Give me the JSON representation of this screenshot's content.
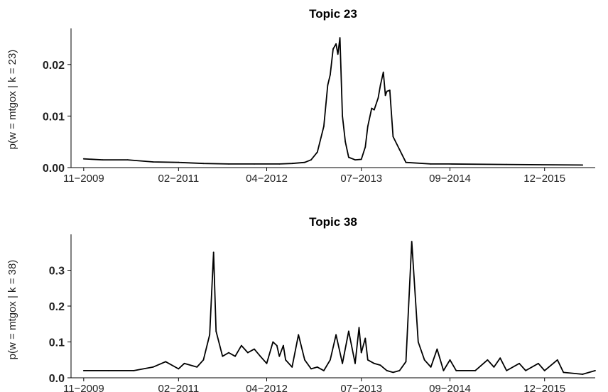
{
  "chart_data": [
    {
      "type": "line",
      "title": "Topic 23",
      "ylabel": "p(w = mtgox | k = 23)",
      "xlabel": "",
      "x_tick_labels": [
        "11−2009",
        "02−2011",
        "04−2012",
        "07−2013",
        "09−2014",
        "12−2015"
      ],
      "x_tick_dates": [
        "2009-11",
        "2011-02",
        "2012-04",
        "2013-07",
        "2014-09",
        "2015-12"
      ],
      "y_ticks": [
        0.0,
        0.01,
        0.02
      ],
      "y_tick_labels": [
        "0.00",
        "0.01",
        "0.02"
      ],
      "xlim": [
        "2009-09",
        "2016-08"
      ],
      "ylim": [
        0,
        0.027
      ],
      "grid": false,
      "series": [
        {
          "points": [
            [
              "2009-11",
              0.0017
            ],
            [
              "2010-02",
              0.0015
            ],
            [
              "2010-06",
              0.0015
            ],
            [
              "2010-10",
              0.0011
            ],
            [
              "2011-02",
              0.001
            ],
            [
              "2011-06",
              0.0008
            ],
            [
              "2011-10",
              0.0007
            ],
            [
              "2012-02",
              0.0007
            ],
            [
              "2012-06",
              0.0007
            ],
            [
              "2012-08",
              0.0008
            ],
            [
              "2012-10",
              0.001
            ],
            [
              "2012-11",
              0.0015
            ],
            [
              "2012-12",
              0.003
            ],
            [
              "2013-01",
              0.008
            ],
            [
              "2013-01-20",
              0.016
            ],
            [
              "2013-02",
              0.018
            ],
            [
              "2013-02-15",
              0.023
            ],
            [
              "2013-03",
              0.024
            ],
            [
              "2013-03-10",
              0.022
            ],
            [
              "2013-03-20",
              0.0252
            ],
            [
              "2013-04",
              0.01
            ],
            [
              "2013-04-15",
              0.005
            ],
            [
              "2013-05",
              0.002
            ],
            [
              "2013-06",
              0.0015
            ],
            [
              "2013-07",
              0.0016
            ],
            [
              "2013-07-20",
              0.004
            ],
            [
              "2013-08",
              0.008
            ],
            [
              "2013-08-20",
              0.0115
            ],
            [
              "2013-09",
              0.0112
            ],
            [
              "2013-09-20",
              0.0135
            ],
            [
              "2013-10",
              0.016
            ],
            [
              "2013-10-15",
              0.0185
            ],
            [
              "2013-10-25",
              0.014
            ],
            [
              "2013-11",
              0.0148
            ],
            [
              "2013-11-15",
              0.015
            ],
            [
              "2013-12",
              0.006
            ],
            [
              "2014-01",
              0.0035
            ],
            [
              "2014-02",
              0.001
            ],
            [
              "2014-06",
              0.0007
            ],
            [
              "2014-09",
              0.0007
            ],
            [
              "2015-06",
              0.0006
            ],
            [
              "2016-06",
              0.0005
            ]
          ]
        }
      ]
    },
    {
      "type": "line",
      "title": "Topic 38",
      "ylabel": "p(w = mtgox | k = 38)",
      "xlabel": "",
      "x_tick_labels": [
        "11−2009",
        "02−2011",
        "04−2012",
        "07−2013",
        "09−2014",
        "12−2015"
      ],
      "x_tick_dates": [
        "2009-11",
        "2011-02",
        "2012-04",
        "2013-07",
        "2014-09",
        "2015-12"
      ],
      "y_ticks": [
        0.0,
        0.1,
        0.2,
        0.3
      ],
      "y_tick_labels": [
        "0.0",
        "0.1",
        "0.2",
        "0.3"
      ],
      "xlim": [
        "2009-09",
        "2016-08"
      ],
      "ylim": [
        0,
        0.4
      ],
      "grid": false,
      "series": [
        {
          "points": [
            [
              "2009-11",
              0.02
            ],
            [
              "2010-03",
              0.02
            ],
            [
              "2010-07",
              0.02
            ],
            [
              "2010-10",
              0.03
            ],
            [
              "2010-12",
              0.045
            ],
            [
              "2011-02",
              0.025
            ],
            [
              "2011-03",
              0.04
            ],
            [
              "2011-05",
              0.03
            ],
            [
              "2011-06",
              0.05
            ],
            [
              "2011-07",
              0.12
            ],
            [
              "2011-07-20",
              0.35
            ],
            [
              "2011-08",
              0.13
            ],
            [
              "2011-09",
              0.06
            ],
            [
              "2011-10",
              0.07
            ],
            [
              "2011-11",
              0.06
            ],
            [
              "2011-12",
              0.09
            ],
            [
              "2012-01",
              0.07
            ],
            [
              "2012-02",
              0.08
            ],
            [
              "2012-03",
              0.06
            ],
            [
              "2012-04",
              0.04
            ],
            [
              "2012-05",
              0.1
            ],
            [
              "2012-05-20",
              0.09
            ],
            [
              "2012-06",
              0.06
            ],
            [
              "2012-06-20",
              0.09
            ],
            [
              "2012-07",
              0.05
            ],
            [
              "2012-08",
              0.03
            ],
            [
              "2012-09",
              0.12
            ],
            [
              "2012-10",
              0.05
            ],
            [
              "2012-11",
              0.025
            ],
            [
              "2012-12",
              0.03
            ],
            [
              "2013-01",
              0.02
            ],
            [
              "2013-02",
              0.05
            ],
            [
              "2013-03",
              0.12
            ],
            [
              "2013-04",
              0.04
            ],
            [
              "2013-05",
              0.13
            ],
            [
              "2013-06",
              0.04
            ],
            [
              "2013-06-20",
              0.14
            ],
            [
              "2013-07",
              0.07
            ],
            [
              "2013-07-20",
              0.11
            ],
            [
              "2013-08",
              0.05
            ],
            [
              "2013-09",
              0.04
            ],
            [
              "2013-10",
              0.035
            ],
            [
              "2013-11",
              0.02
            ],
            [
              "2013-12",
              0.015
            ],
            [
              "2014-01",
              0.02
            ],
            [
              "2014-02",
              0.045
            ],
            [
              "2014-03",
              0.38
            ],
            [
              "2014-04",
              0.1
            ],
            [
              "2014-05",
              0.05
            ],
            [
              "2014-06",
              0.03
            ],
            [
              "2014-07",
              0.08
            ],
            [
              "2014-08",
              0.02
            ],
            [
              "2014-09",
              0.05
            ],
            [
              "2014-10",
              0.02
            ],
            [
              "2015-01",
              0.02
            ],
            [
              "2015-03",
              0.05
            ],
            [
              "2015-04",
              0.03
            ],
            [
              "2015-05",
              0.055
            ],
            [
              "2015-06",
              0.02
            ],
            [
              "2015-08",
              0.04
            ],
            [
              "2015-09",
              0.02
            ],
            [
              "2015-11",
              0.04
            ],
            [
              "2015-12",
              0.02
            ],
            [
              "2016-02",
              0.05
            ],
            [
              "2016-03",
              0.015
            ],
            [
              "2016-06",
              0.01
            ],
            [
              "2016-08",
              0.02
            ]
          ]
        }
      ]
    }
  ]
}
